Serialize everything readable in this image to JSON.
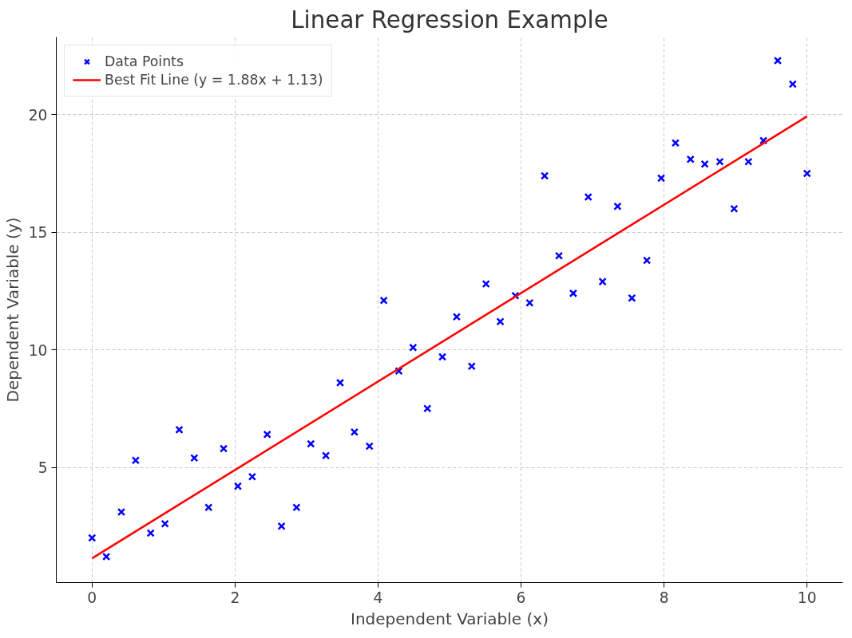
{
  "chart_data": {
    "type": "scatter",
    "title": "Linear Regression Example",
    "xlabel": "Independent Variable (x)",
    "ylabel": "Dependent Variable (y)",
    "xlim": [
      -0.5,
      10.5
    ],
    "ylim": [
      0.1,
      23.3
    ],
    "xticks": [
      0,
      2,
      4,
      6,
      8,
      10
    ],
    "yticks": [
      5,
      10,
      15,
      20
    ],
    "grid": true,
    "legend": "top left",
    "series": [
      {
        "name": "Data Points",
        "marker": "cross",
        "color": "#0000ff",
        "x": [
          0,
          0.2,
          0.41,
          0.61,
          0.82,
          1.02,
          1.22,
          1.43,
          1.63,
          1.84,
          2.04,
          2.24,
          2.45,
          2.65,
          2.86,
          3.06,
          3.27,
          3.47,
          3.67,
          3.88,
          4.08,
          4.29,
          4.49,
          4.69,
          4.9,
          5.1,
          5.31,
          5.51,
          5.71,
          5.92,
          6.12,
          6.33,
          6.53,
          6.73,
          6.94,
          7.14,
          7.35,
          7.55,
          7.76,
          7.96,
          8.16,
          8.37,
          8.57,
          8.78,
          8.98,
          9.18,
          9.39,
          9.59,
          9.8,
          10
        ],
        "values": [
          2.0,
          1.2,
          3.1,
          5.3,
          2.2,
          2.6,
          6.6,
          5.4,
          3.3,
          5.8,
          4.2,
          4.6,
          6.4,
          2.5,
          3.3,
          6.0,
          5.5,
          8.6,
          6.5,
          5.9,
          12.1,
          9.1,
          10.1,
          7.5,
          9.7,
          11.4,
          9.3,
          12.8,
          11.2,
          12.3,
          12.0,
          17.4,
          14.0,
          12.4,
          16.5,
          12.9,
          16.1,
          12.2,
          13.8,
          17.3,
          18.8,
          18.1,
          17.9,
          18.0,
          16.0,
          18.0,
          18.9,
          22.3,
          21.3,
          17.5
        ]
      },
      {
        "name": "Best Fit Line (y = 1.88x + 1.13)",
        "type": "line",
        "line_style": "solid",
        "color": "#ff0000",
        "x": [
          0,
          10
        ],
        "values": [
          1.13,
          19.93
        ]
      }
    ]
  }
}
